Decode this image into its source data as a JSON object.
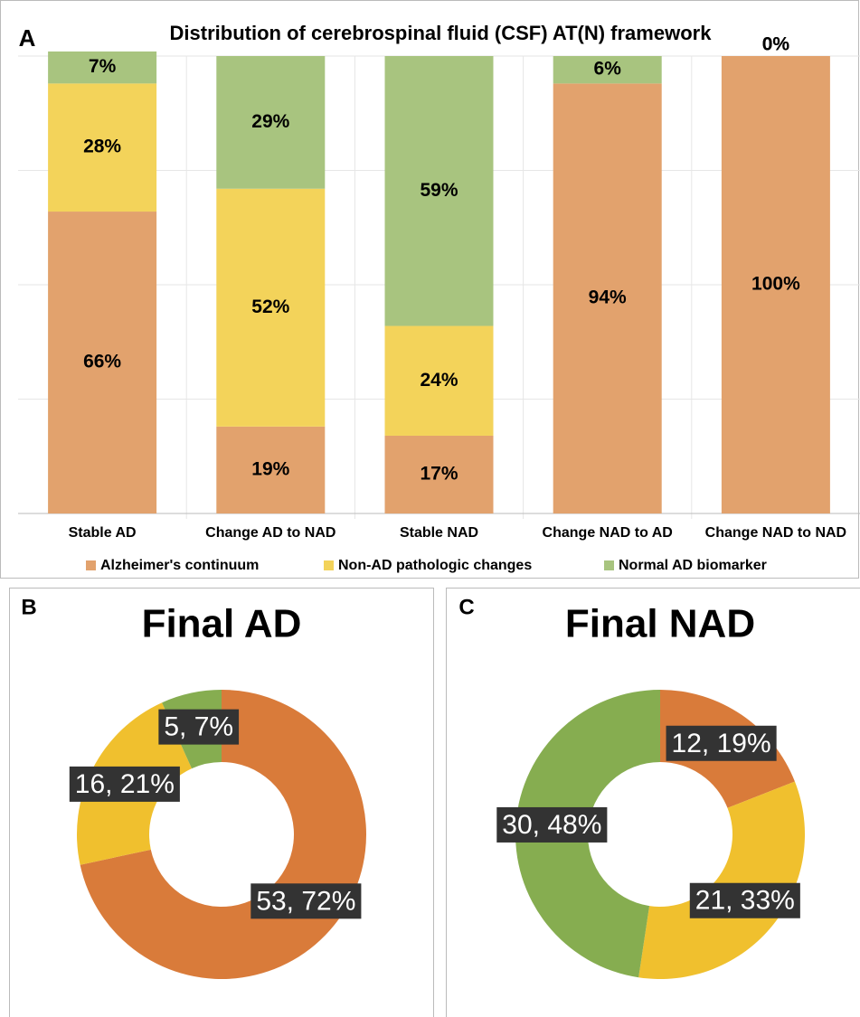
{
  "chart_data": [
    {
      "type": "bar",
      "stacked": true,
      "panel": "A",
      "title": "Distribution of cerebrospinal fluid (CSF) AT(N) framework",
      "categories": [
        "Stable AD",
        "Change AD to NAD",
        "Stable NAD",
        "Change NAD to AD",
        "Change NAD to NAD"
      ],
      "series": [
        {
          "name": "Alzheimer's continuum",
          "color": "#e2a26d",
          "values": [
            66,
            19,
            17,
            94,
            100
          ],
          "value_labels": [
            "66%",
            "19%",
            "17%",
            "94%",
            "100%"
          ]
        },
        {
          "name": "Non-AD pathologic changes",
          "color": "#f3d35a",
          "values": [
            28,
            52,
            24,
            0,
            0
          ],
          "value_labels": [
            "28%",
            "52%",
            "24%",
            "0%",
            "0%"
          ]
        },
        {
          "name": "Normal AD biomarker",
          "color": "#a8c47f",
          "values": [
            7,
            29,
            59,
            6,
            0
          ],
          "value_labels": [
            "7%",
            "29%",
            "59%",
            "6%",
            "0%"
          ]
        }
      ],
      "ylim": [
        0,
        100
      ],
      "grid": true,
      "legend": "bottom"
    },
    {
      "type": "donut",
      "panel": "B",
      "title": "Final AD",
      "categories": [
        "Alzheimer's continuum",
        "Non-AD pathologic changes",
        "Normal AD biomarker"
      ],
      "colors": [
        "#d97b3a",
        "#f0c02e",
        "#86ad50"
      ],
      "values": [
        53,
        16,
        5
      ],
      "value_labels": [
        "53, 72%",
        "16, 21%",
        "5, 7%"
      ]
    },
    {
      "type": "donut",
      "panel": "C",
      "title": "Final NAD",
      "categories": [
        "Alzheimer's continuum",
        "Non-AD pathologic changes",
        "Normal AD biomarker"
      ],
      "colors": [
        "#d97b3a",
        "#f0c02e",
        "#86ad50"
      ],
      "values": [
        12,
        21,
        30
      ],
      "value_labels": [
        "12, 19%",
        "21, 33%",
        "30, 48%"
      ]
    }
  ]
}
